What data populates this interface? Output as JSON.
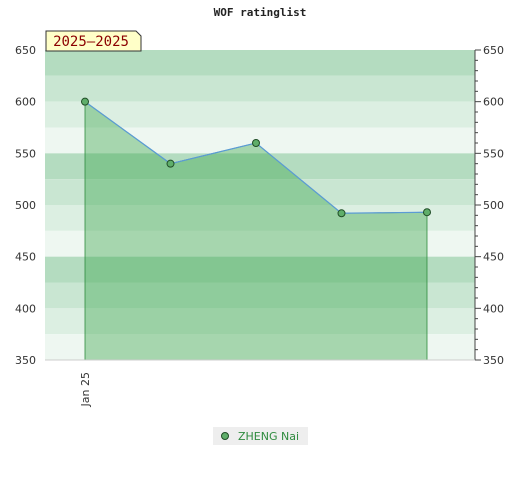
{
  "chart_data": {
    "type": "line",
    "title": "WOF ratinglist",
    "season_label": "2025–2025",
    "x_tick_labels": [
      "Jan 25"
    ],
    "ylim": [
      350,
      650
    ],
    "y_ticks": [
      350,
      400,
      450,
      500,
      550,
      600,
      650
    ],
    "series": [
      {
        "name": "ZHENG Nai",
        "values": [
          600,
          540,
          560,
          492,
          493
        ]
      }
    ],
    "legend_position": "bottom-center",
    "colors": {
      "line": "#5b9bd5",
      "fill": "#3aa54a",
      "marker": "#5fae6a",
      "band_dark": "#b4dcc0",
      "band_mid": "#c9e6d2",
      "band_light": "#dcefe2",
      "band_lightest": "#eef7f1",
      "legend_text": "#2e8b3e"
    }
  }
}
